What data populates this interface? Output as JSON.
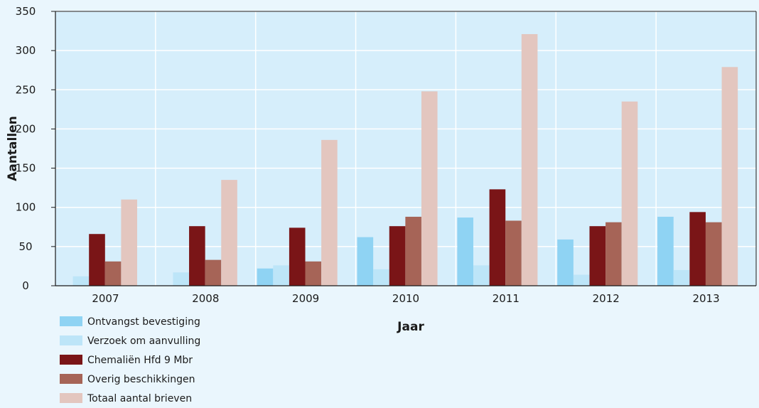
{
  "chart_data": {
    "type": "bar",
    "title": "",
    "xlabel": "Jaar",
    "ylabel": "Aantallen",
    "categories": [
      "2007",
      "2008",
      "2009",
      "2010",
      "2011",
      "2012",
      "2013"
    ],
    "ylim": [
      0,
      350
    ],
    "yticks": [
      0,
      50,
      100,
      150,
      200,
      250,
      300,
      350
    ],
    "grid": true,
    "legend_position": "bottom-left",
    "series": [
      {
        "name": "Ontvangst bevestiging",
        "color": "#8fd3f3",
        "values": [
          0,
          0,
          22,
          62,
          87,
          59,
          88
        ]
      },
      {
        "name": "Verzoek om aanvulling",
        "color": "#bde5f8",
        "values": [
          12,
          17,
          26,
          21,
          26,
          14,
          20
        ]
      },
      {
        "name": "Chemaliën Hfd 9 Mbr",
        "color": "#7a1517",
        "values": [
          66,
          76,
          74,
          76,
          123,
          76,
          94
        ]
      },
      {
        "name": "Overig beschikkingen",
        "color": "#a66457",
        "values": [
          31,
          33,
          31,
          88,
          83,
          81,
          81
        ]
      },
      {
        "name": "Totaal aantal brieven",
        "color": "#e3c6bf",
        "values": [
          110,
          135,
          186,
          248,
          321,
          235,
          279
        ]
      }
    ]
  }
}
